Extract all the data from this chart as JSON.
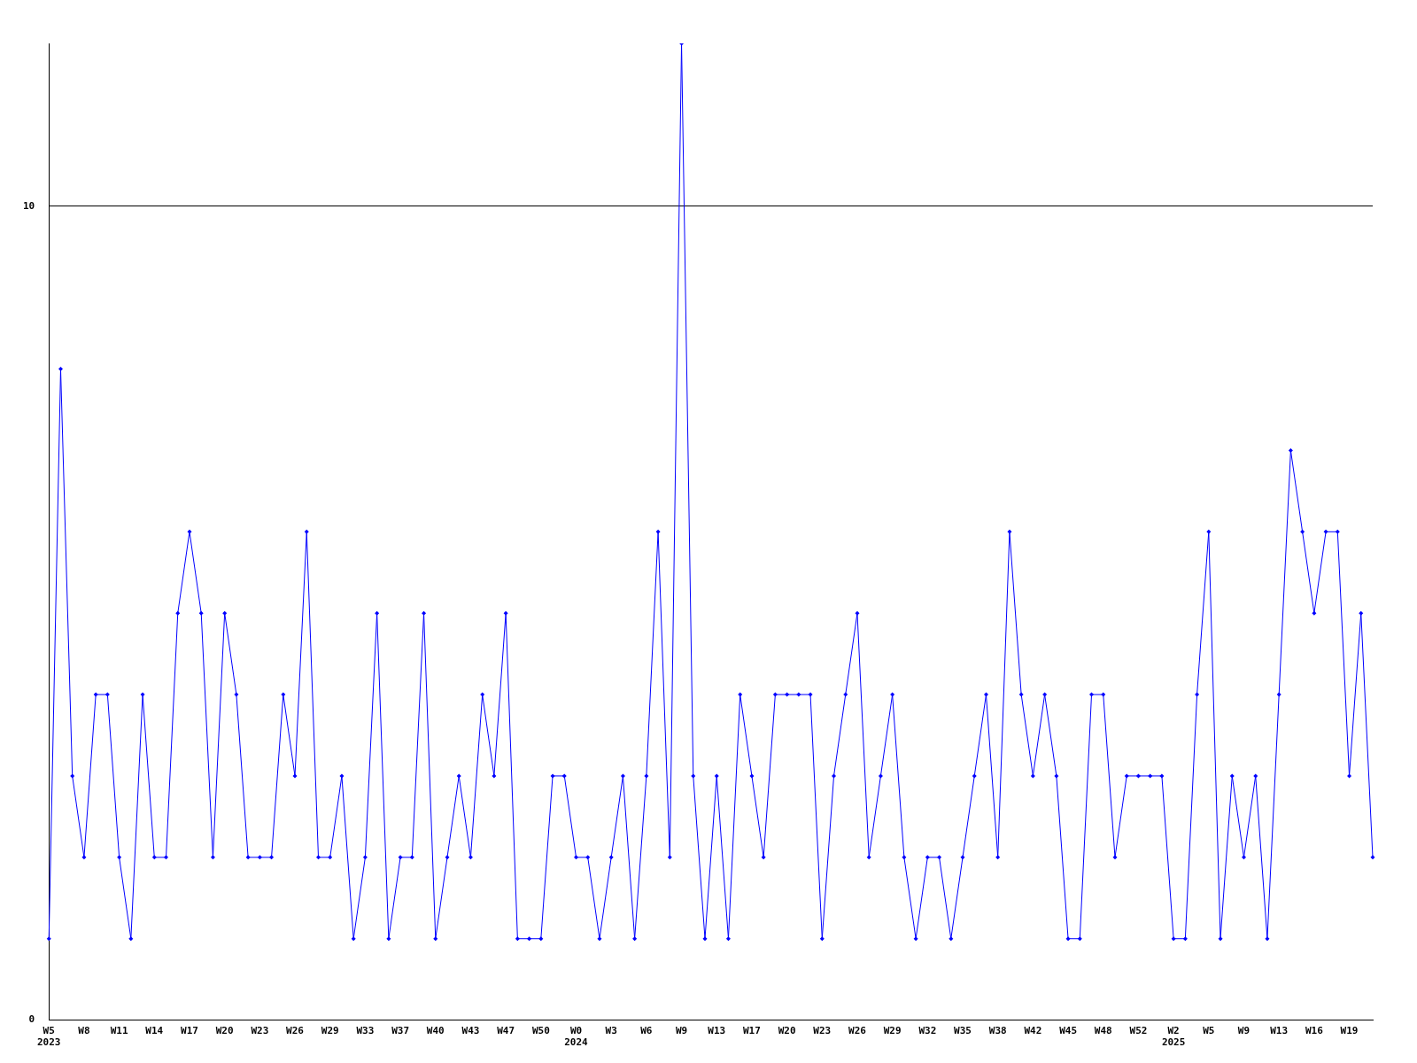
{
  "chart_data": {
    "type": "line",
    "categories": [
      "W5\n2023",
      null,
      null,
      "W8",
      null,
      null,
      "W11",
      null,
      null,
      "W14",
      null,
      null,
      "W17",
      null,
      null,
      "W20",
      null,
      null,
      "W23",
      null,
      null,
      "W26",
      null,
      null,
      "W29",
      null,
      null,
      "W33",
      null,
      null,
      "W37",
      null,
      null,
      "W40",
      null,
      null,
      "W43",
      null,
      null,
      "W47",
      null,
      null,
      "W50",
      null,
      null,
      "W0\n2024",
      null,
      null,
      "W3",
      null,
      null,
      "W6",
      null,
      null,
      "W9",
      null,
      null,
      "W13",
      null,
      null,
      "W17",
      null,
      null,
      "W20",
      null,
      null,
      "W23",
      null,
      null,
      "W26",
      null,
      null,
      "W29",
      null,
      null,
      "W32",
      null,
      null,
      "W35",
      null,
      null,
      "W38",
      null,
      null,
      "W42",
      null,
      null,
      "W45",
      null,
      null,
      "W48",
      null,
      null,
      "W52",
      null,
      null,
      "W2\n2025",
      null,
      null,
      "W5",
      null,
      null,
      "W9",
      null,
      null,
      "W13",
      null,
      null,
      "W16",
      null,
      null,
      "W19",
      null,
      null
    ],
    "series": [
      {
        "color": "#0000ff",
        "values": [
          1,
          8,
          3,
          2,
          4,
          4,
          2,
          1,
          4,
          2,
          2,
          5,
          6,
          5,
          2,
          5,
          4,
          2,
          2,
          2,
          4,
          3,
          6,
          2,
          2,
          3,
          1,
          2,
          5,
          1,
          2,
          2,
          5,
          1,
          2,
          3,
          2,
          4,
          3,
          5,
          1,
          1,
          1,
          3,
          3,
          2,
          2,
          1,
          2,
          3,
          1,
          3,
          6,
          2,
          12,
          3,
          1,
          3,
          1,
          4,
          3,
          2,
          4,
          4,
          4,
          4,
          1,
          3,
          4,
          5,
          2,
          3,
          4,
          2,
          1,
          2,
          2,
          1,
          2,
          3,
          4,
          2,
          6,
          4,
          3,
          4,
          3,
          1,
          1,
          4,
          4,
          2,
          3,
          3,
          3,
          3,
          1,
          1,
          4,
          6,
          1,
          3,
          2,
          3,
          1,
          4,
          7,
          6,
          5,
          6,
          6,
          3,
          5,
          2
        ]
      }
    ],
    "ylim": [
      0,
      12
    ],
    "yticks": [
      0,
      10
    ],
    "grid": "y",
    "legend": false,
    "marker": "diamond",
    "line_style": "solid"
  }
}
